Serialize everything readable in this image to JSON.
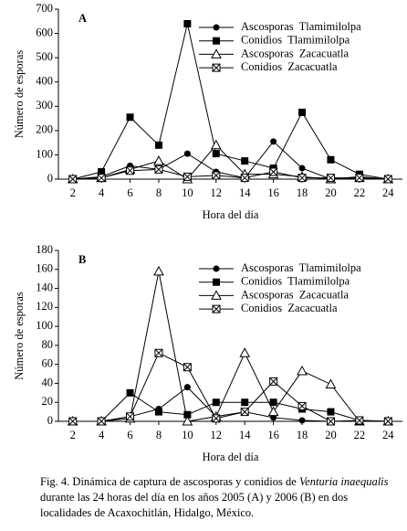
{
  "chart_data": [
    {
      "type": "line",
      "label": "A",
      "y_label": "Número de esporas",
      "x_label": "Hora del día",
      "x": [
        2,
        4,
        6,
        8,
        10,
        12,
        14,
        16,
        18,
        20,
        22,
        24
      ],
      "xlim": [
        1,
        25
      ],
      "xticks": [
        2,
        4,
        6,
        8,
        10,
        12,
        14,
        16,
        18,
        20,
        22,
        24
      ],
      "ylim": [
        0,
        700
      ],
      "yticks": [
        0,
        100,
        200,
        300,
        400,
        500,
        600,
        700
      ],
      "grid": false,
      "legend": "upper right",
      "series": [
        {
          "name": "Ascosporas  Tlamimilolpa",
          "color": "#000000",
          "marker": "circle",
          "values": [
            0,
            10,
            55,
            40,
            105,
            30,
            5,
            155,
            45,
            0,
            10,
            0
          ]
        },
        {
          "name": "Conidios  Tlamimilolpa",
          "color": "#000000",
          "marker": "square",
          "values": [
            0,
            30,
            255,
            140,
            640,
            105,
            75,
            45,
            275,
            80,
            20,
            0
          ]
        },
        {
          "name": "Ascosporas  Zacacuatla",
          "color": "#000000",
          "marker": "triangle",
          "values": [
            0,
            5,
            40,
            75,
            0,
            140,
            20,
            20,
            10,
            0,
            5,
            0
          ]
        },
        {
          "name": "Conidios  Zacacuatla",
          "color": "#000000",
          "marker": "square-x",
          "values": [
            0,
            5,
            35,
            40,
            10,
            15,
            5,
            30,
            5,
            5,
            5,
            0
          ]
        }
      ]
    },
    {
      "type": "line",
      "label": "B",
      "y_label": "Número de esporas",
      "x_label": "Hora del día",
      "x": [
        2,
        4,
        6,
        8,
        10,
        12,
        14,
        16,
        18,
        20,
        22,
        24
      ],
      "xlim": [
        1,
        25
      ],
      "xticks": [
        2,
        4,
        6,
        8,
        10,
        12,
        14,
        16,
        18,
        20,
        22,
        24
      ],
      "ylim": [
        0,
        180
      ],
      "yticks": [
        0,
        20,
        40,
        60,
        80,
        100,
        120,
        140,
        160,
        180
      ],
      "grid": false,
      "legend": "upper right",
      "series": [
        {
          "name": "Ascosporas  Tlamimilolpa",
          "color": "#000000",
          "marker": "circle",
          "values": [
            0,
            0,
            5,
            13,
            36,
            5,
            10,
            4,
            1,
            0,
            0,
            0
          ]
        },
        {
          "name": "Conidios  Tlamimilolpa",
          "color": "#000000",
          "marker": "square",
          "values": [
            0,
            0,
            30,
            10,
            7,
            20,
            20,
            20,
            13,
            10,
            1,
            0
          ]
        },
        {
          "name": "Ascosporas  Zacacuatla",
          "color": "#000000",
          "marker": "triangle",
          "values": [
            0,
            0,
            3,
            158,
            0,
            5,
            72,
            10,
            53,
            39,
            0,
            0
          ]
        },
        {
          "name": "Conidios  Zacacuatla",
          "color": "#000000",
          "marker": "square-x",
          "values": [
            0,
            0,
            5,
            72,
            57,
            3,
            10,
            42,
            16,
            0,
            1,
            0
          ]
        }
      ]
    }
  ],
  "caption": {
    "lead": "Fig. 4. Dinámica de captura de ascosporas y conidios de ",
    "species": "Venturia inaequalis",
    "rest": " durante las 24 horas del día en los años 2005 (A) y 2006 (B) en dos localidades de Acaxochitlán, Hidalgo, México."
  }
}
